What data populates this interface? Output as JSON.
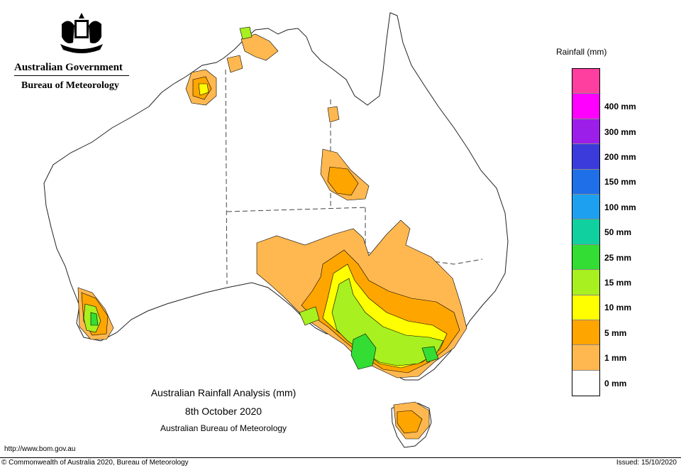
{
  "header": {
    "government": "Australian Government",
    "agency": "Bureau of Meteorology"
  },
  "legend": {
    "title": "Rainfall (mm)",
    "bins": [
      {
        "label": "",
        "color": "#ff3fa0"
      },
      {
        "label": "400 mm",
        "color": "#ff00ff"
      },
      {
        "label": "300 mm",
        "color": "#9b1fe8"
      },
      {
        "label": "200 mm",
        "color": "#3b3bdc"
      },
      {
        "label": "150 mm",
        "color": "#1f6fe8"
      },
      {
        "label": "100 mm",
        "color": "#1ea0f0"
      },
      {
        "label": "50 mm",
        "color": "#10d0a0"
      },
      {
        "label": "25 mm",
        "color": "#33dd33"
      },
      {
        "label": "15 mm",
        "color": "#a8f020"
      },
      {
        "label": "10 mm",
        "color": "#ffff00"
      },
      {
        "label": "5 mm",
        "color": "#ffa500"
      },
      {
        "label": "1 mm",
        "color": "#ffb850"
      },
      {
        "label": "0 mm",
        "color": "#ffffff"
      }
    ]
  },
  "caption": {
    "title": "Australian Rainfall Analysis (mm)",
    "date": "8th October 2020",
    "source": "Australian Bureau of Meteorology"
  },
  "footer": {
    "url": "http://www.bom.gov.au",
    "copyright": "© Commonwealth of Australia 2020, Bureau of Meteorology",
    "issued": "Issued: 15/10/2020"
  },
  "colors": {
    "one_mm": "#ffb850",
    "five_mm": "#ffa500",
    "ten_mm": "#ffff00",
    "fifteen_mm": "#a8f020",
    "twentyfive_mm": "#33dd33"
  }
}
